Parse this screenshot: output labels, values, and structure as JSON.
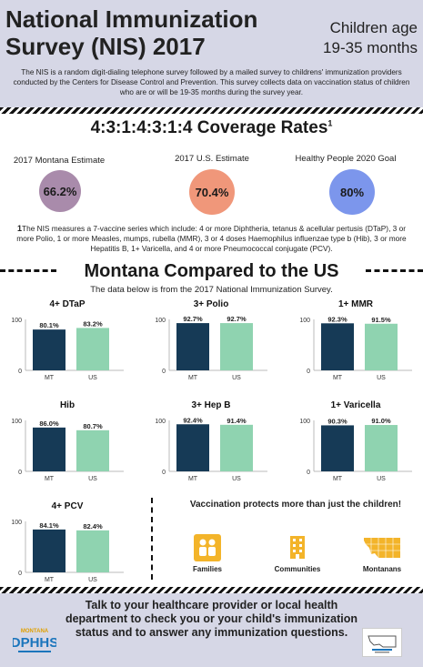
{
  "header": {
    "title_line1": "National Immunization",
    "title_line2": "Survey (NIS) 2017",
    "age_line1": "Children age",
    "age_line2": "19-35 months",
    "intro": "The NIS is a random digit-dialing telephone survey followed by a mailed survey to childrens' immunization providers conducted by the Centers for Disease Control and Prevention. This survey collects data on vaccination status of children who are or will be 19-35 months during the survey year."
  },
  "coverage": {
    "title": "4:3:1:4:3:1:4 Coverage Rates",
    "footnote_mark": "1",
    "estimates": [
      {
        "label": "2017 Montana Estimate",
        "value": "66.2%",
        "color": "#a98bab"
      },
      {
        "label": "2017 U.S. Estimate",
        "value": "70.4%",
        "color": "#f0977a"
      },
      {
        "label": "Healthy People 2020 Goal",
        "value": "80%",
        "color": "#7c96ec"
      }
    ],
    "footnote_num": "1",
    "footnote": "The NIS measures a 7-vaccine series which include: 4 or more Diphtheria, tetanus & acellular pertusis (DTaP), 3 or more Polio, 1 or more Measles, mumps, rubella (MMR), 3 or 4 doses Haemophilus influenzae type b (Hib), 3 or more Hepatitis B, 1+ Varicella, and 4 or more Pneumococcal conjugate (PCV)."
  },
  "compare": {
    "title": "Montana Compared to the US",
    "subtitle": "The data below is from the 2017 National Immunization Survey."
  },
  "chart_data": [
    {
      "type": "bar",
      "title": "4+ DTaP",
      "categories": [
        "MT",
        "US"
      ],
      "values": [
        80.1,
        83.2
      ],
      "labels": [
        "80.1%",
        "83.2%"
      ],
      "ylim": [
        0,
        100
      ],
      "yticks": [
        "0",
        "100"
      ],
      "colors": [
        "#163a56",
        "#8fd3b0"
      ]
    },
    {
      "type": "bar",
      "title": "3+ Polio",
      "categories": [
        "MT",
        "US"
      ],
      "values": [
        92.7,
        92.7
      ],
      "labels": [
        "92.7%",
        "92.7%"
      ],
      "ylim": [
        0,
        100
      ],
      "yticks": [
        "0",
        "100"
      ],
      "colors": [
        "#163a56",
        "#8fd3b0"
      ]
    },
    {
      "type": "bar",
      "title": "1+ MMR",
      "categories": [
        "MT",
        "US"
      ],
      "values": [
        92.3,
        91.5
      ],
      "labels": [
        "92.3%",
        "91.5%"
      ],
      "ylim": [
        0,
        100
      ],
      "yticks": [
        "0",
        "100"
      ],
      "colors": [
        "#163a56",
        "#8fd3b0"
      ]
    },
    {
      "type": "bar",
      "title": "Hib",
      "categories": [
        "MT",
        "US"
      ],
      "values": [
        86.0,
        80.7
      ],
      "labels": [
        "86.0%",
        "80.7%"
      ],
      "ylim": [
        0,
        100
      ],
      "yticks": [
        "0",
        "100"
      ],
      "colors": [
        "#163a56",
        "#8fd3b0"
      ]
    },
    {
      "type": "bar",
      "title": "3+ Hep B",
      "categories": [
        "MT",
        "US"
      ],
      "values": [
        92.4,
        91.4
      ],
      "labels": [
        "92.4%",
        "91.4%"
      ],
      "ylim": [
        0,
        100
      ],
      "yticks": [
        "0",
        "100"
      ],
      "colors": [
        "#163a56",
        "#8fd3b0"
      ]
    },
    {
      "type": "bar",
      "title": "1+ Varicella",
      "categories": [
        "MT",
        "US"
      ],
      "values": [
        90.3,
        91.0
      ],
      "labels": [
        "90.3%",
        "91.0%"
      ],
      "ylim": [
        0,
        100
      ],
      "yticks": [
        "0",
        "100"
      ],
      "colors": [
        "#163a56",
        "#8fd3b0"
      ]
    },
    {
      "type": "bar",
      "title": "4+ PCV",
      "categories": [
        "MT",
        "US"
      ],
      "values": [
        84.1,
        82.4
      ],
      "labels": [
        "84.1%",
        "82.4%"
      ],
      "ylim": [
        0,
        100
      ],
      "yticks": [
        "0",
        "100"
      ],
      "colors": [
        "#163a56",
        "#8fd3b0"
      ]
    }
  ],
  "protects": {
    "title": "Vaccination protects more than just the children!",
    "items": [
      {
        "label": "Families",
        "icon": "families-icon"
      },
      {
        "label": "Communities",
        "icon": "communities-icon"
      },
      {
        "label": "Montanans",
        "icon": "montana-map-icon"
      }
    ],
    "icon_color": "#f3b42a"
  },
  "footer": {
    "cta": "Talk to your healthcare provider or local health department to check you or your child's immunization status and to answer any immunization questions.",
    "logo_text": "MONTANA",
    "logo_main": "DPHHS"
  }
}
